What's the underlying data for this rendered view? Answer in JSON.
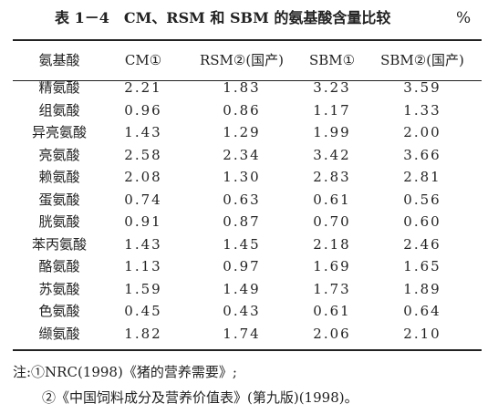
{
  "title": "表 1－4　CM、RSM 和 SBM 的氨基酸含量比较",
  "unit": "%",
  "table": {
    "header": [
      "氨基酸",
      "CM①",
      "RSM②(国产)",
      "SBM①",
      "SBM②(国产)"
    ],
    "rows": [
      [
        "精氨酸",
        "2.21",
        "1.83",
        "3.23",
        "3.59"
      ],
      [
        "组氨酸",
        "0.96",
        "0.86",
        "1.17",
        "1.33"
      ],
      [
        "异亮氨酸",
        "1.43",
        "1.29",
        "1.99",
        "2.00"
      ],
      [
        "亮氨酸",
        "2.58",
        "2.34",
        "3.42",
        "3.66"
      ],
      [
        "赖氨酸",
        "2.08",
        "1.30",
        "2.83",
        "2.81"
      ],
      [
        "蛋氨酸",
        "0.74",
        "0.63",
        "0.61",
        "0.56"
      ],
      [
        "胱氨酸",
        "0.91",
        "0.87",
        "0.70",
        "0.60"
      ],
      [
        "苯丙氨酸",
        "1.43",
        "1.45",
        "2.18",
        "2.46"
      ],
      [
        "酪氨酸",
        "1.13",
        "0.97",
        "1.69",
        "1.65"
      ],
      [
        "苏氨酸",
        "1.59",
        "1.49",
        "1.73",
        "1.89"
      ],
      [
        "色氨酸",
        "0.45",
        "0.43",
        "0.61",
        "0.64"
      ],
      [
        "缬氨酸",
        "1.82",
        "1.74",
        "2.06",
        "2.10"
      ]
    ]
  },
  "notes": [
    "注:①NRC(1998)《猪的营养需要》;",
    "②《中国饲料成分及营养价值表》(第九版)(1998)。"
  ]
}
